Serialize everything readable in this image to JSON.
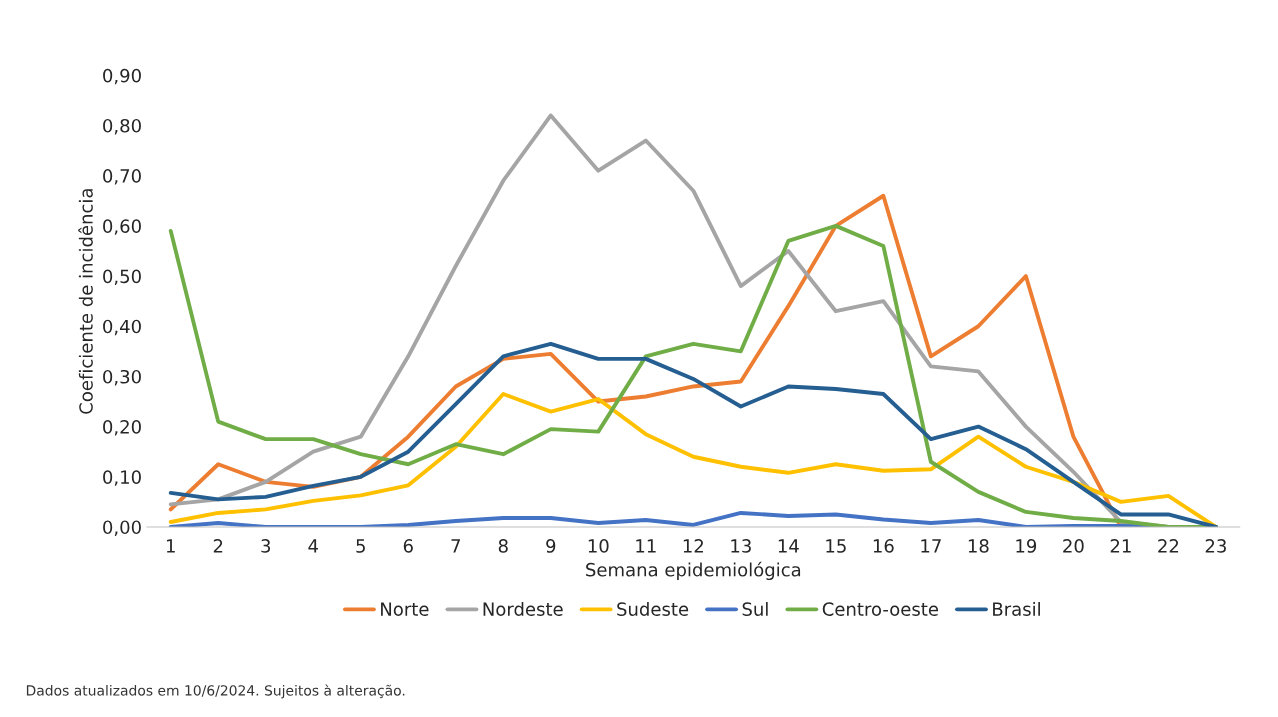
{
  "chart_data": {
    "type": "line",
    "xlabel": "Semana epidemiológica",
    "ylabel": "Coeficiente de incidência",
    "categories": [
      "1",
      "2",
      "3",
      "4",
      "5",
      "6",
      "7",
      "8",
      "9",
      "10",
      "11",
      "12",
      "13",
      "14",
      "15",
      "16",
      "17",
      "18",
      "19",
      "20",
      "21",
      "22",
      "23"
    ],
    "series": [
      {
        "name": "Norte",
        "color": "#ed7d31",
        "values": [
          0.035,
          0.125,
          0.09,
          0.08,
          0.1,
          0.18,
          0.28,
          0.335,
          0.345,
          0.25,
          0.26,
          0.28,
          0.29,
          0.44,
          0.6,
          0.66,
          0.34,
          0.4,
          0.5,
          0.18,
          0.0,
          0.0,
          0.0
        ]
      },
      {
        "name": "Nordeste",
        "color": "#a5a5a5",
        "values": [
          0.045,
          0.055,
          0.09,
          0.15,
          0.18,
          0.34,
          0.52,
          0.69,
          0.82,
          0.71,
          0.77,
          0.67,
          0.48,
          0.55,
          0.43,
          0.45,
          0.32,
          0.31,
          0.2,
          0.11,
          0.01,
          0.0,
          0.0
        ]
      },
      {
        "name": "Sudeste",
        "color": "#ffc000",
        "values": [
          0.01,
          0.028,
          0.035,
          0.052,
          0.063,
          0.083,
          0.16,
          0.265,
          0.23,
          0.255,
          0.185,
          0.14,
          0.12,
          0.108,
          0.125,
          0.112,
          0.115,
          0.18,
          0.12,
          0.09,
          0.05,
          0.062,
          0.0
        ]
      },
      {
        "name": "Sul",
        "color": "#4472c4",
        "values": [
          0.0,
          0.008,
          0.0,
          0.0,
          0.0,
          0.004,
          0.012,
          0.018,
          0.018,
          0.008,
          0.014,
          0.004,
          0.028,
          0.022,
          0.025,
          0.015,
          0.008,
          0.014,
          0.0,
          0.002,
          0.002,
          0.0,
          0.0
        ]
      },
      {
        "name": "Centro-oeste",
        "color": "#70ad47",
        "values": [
          0.59,
          0.21,
          0.175,
          0.175,
          0.145,
          0.125,
          0.165,
          0.145,
          0.195,
          0.19,
          0.34,
          0.365,
          0.35,
          0.57,
          0.6,
          0.56,
          0.13,
          0.07,
          0.03,
          0.018,
          0.012,
          0.0,
          0.0
        ]
      },
      {
        "name": "Brasil",
        "color": "#255e91",
        "values": [
          0.068,
          0.055,
          0.06,
          0.082,
          0.1,
          0.15,
          0.245,
          0.34,
          0.365,
          0.335,
          0.335,
          0.295,
          0.24,
          0.28,
          0.275,
          0.265,
          0.175,
          0.2,
          0.155,
          0.09,
          0.025,
          0.025,
          0.0
        ]
      }
    ],
    "ylim": [
      0,
      0.9
    ],
    "yticks": [
      {
        "value": 0,
        "label": "0,00"
      },
      {
        "value": 0.1,
        "label": "0,10"
      },
      {
        "value": 0.2,
        "label": "0,20"
      },
      {
        "value": 0.3,
        "label": "0,30"
      },
      {
        "value": 0.4,
        "label": "0,40"
      },
      {
        "value": 0.5,
        "label": "0,50"
      },
      {
        "value": 0.6,
        "label": "0,60"
      },
      {
        "value": 0.7,
        "label": "0,70"
      },
      {
        "value": 0.8,
        "label": "0,80"
      },
      {
        "value": 0.9,
        "label": "0,90"
      }
    ],
    "legend": "bottom",
    "grid": false,
    "marker": "none",
    "line_style": "solid",
    "annotations": [
      "Dados atualizados em 10/6/2024. Sujeitos à alteração."
    ]
  }
}
